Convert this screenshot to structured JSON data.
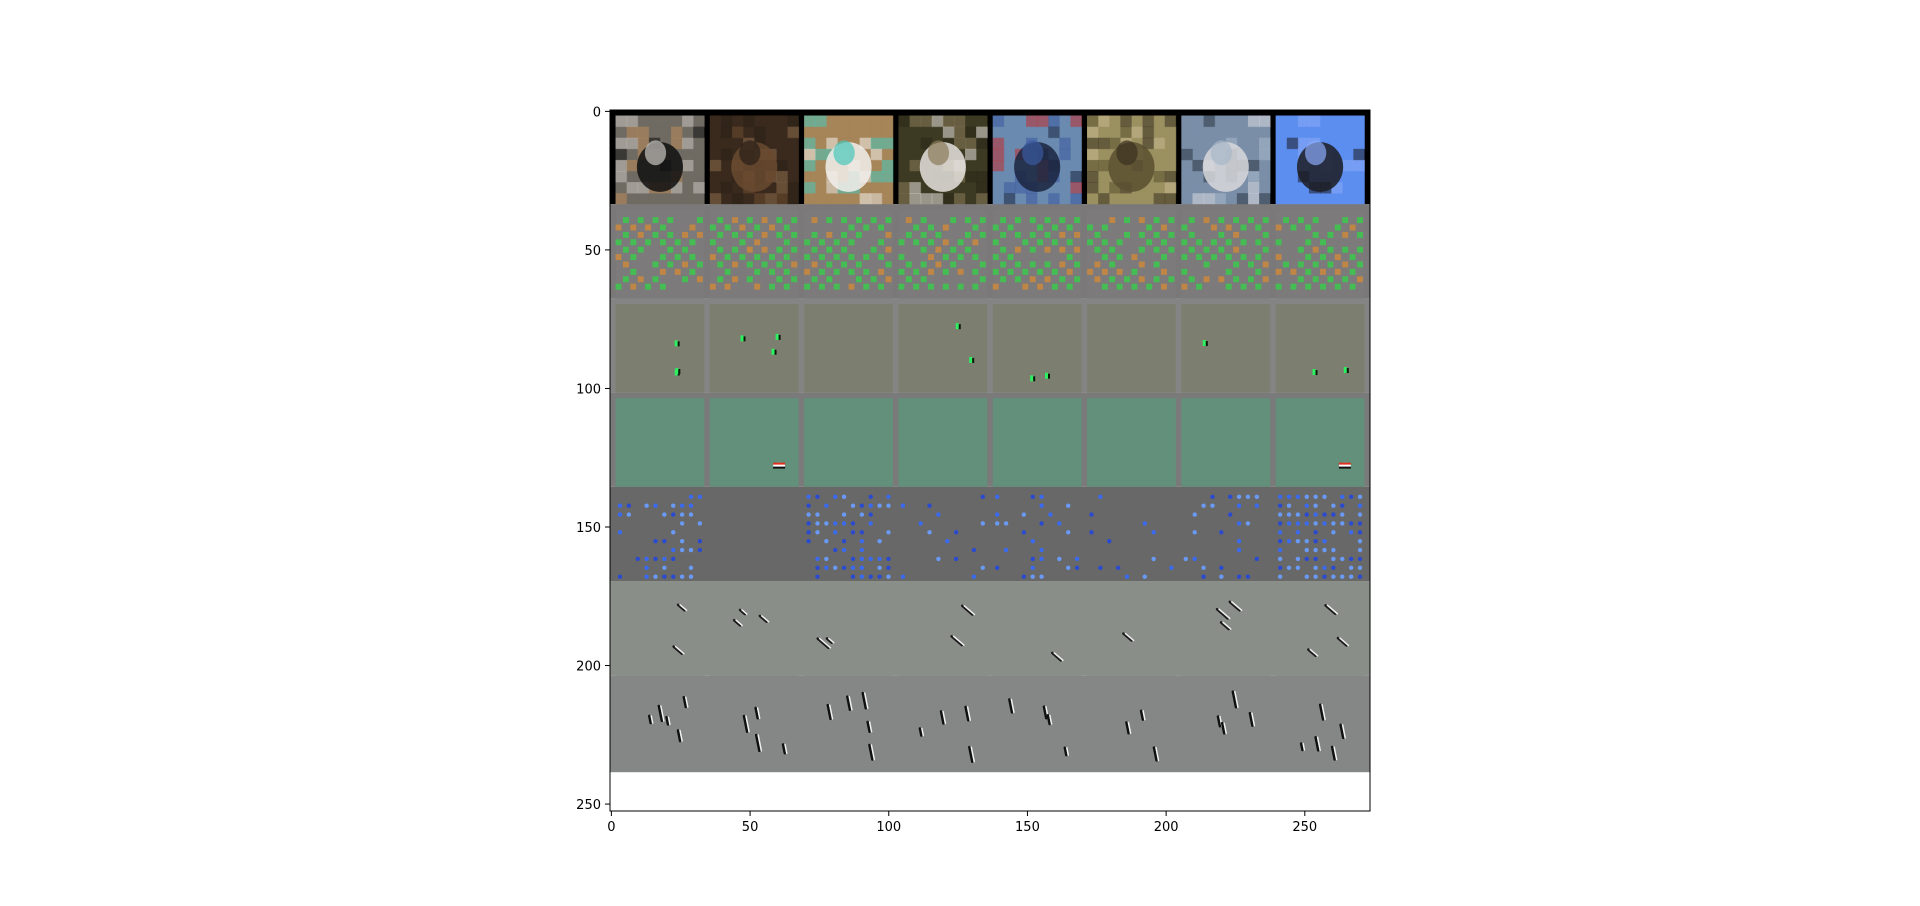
{
  "chart_data": {
    "type": "heatmap",
    "title": "",
    "xlabel": "",
    "ylabel": "",
    "xlim": [
      -0.5,
      273.5
    ],
    "ylim": [
      252.5,
      -0.5
    ],
    "xticks": [
      0,
      50,
      100,
      150,
      200,
      250
    ],
    "yticks": [
      0,
      50,
      100,
      150,
      200,
      250
    ],
    "grid": false,
    "legend": "none",
    "grid_layout": {
      "columns": 8,
      "rows": 7,
      "cell_size": 32,
      "padding": 2
    },
    "rows": [
      {
        "kind": "input-images",
        "background": "#000000",
        "tiles": [
          {
            "subject": "cat-in-box",
            "colors": [
              "#6f6a62",
              "#101010",
              "#b98a5a",
              "#c8c5bf"
            ]
          },
          {
            "subject": "deer",
            "colors": [
              "#3a2a1e",
              "#6a4a30",
              "#8a6a4a",
              "#2a2018"
            ]
          },
          {
            "subject": "white-dog",
            "colors": [
              "#a6855a",
              "#f2f0ec",
              "#e6e2dc",
              "#49c6b9"
            ]
          },
          {
            "subject": "bird-head",
            "colors": [
              "#3c3a22",
              "#e6e2de",
              "#2a2618",
              "#8a7a5a"
            ]
          },
          {
            "subject": "bird-blue",
            "colors": [
              "#6a8ab0",
              "#1a2440",
              "#c03030",
              "#3a5aa0"
            ]
          },
          {
            "subject": "bird-grass",
            "colors": [
              "#9a9060",
              "#5a5030",
              "#c8b890",
              "#3a3020"
            ]
          },
          {
            "subject": "boat",
            "colors": [
              "#7a8ea8",
              "#d8d8dc",
              "#2a3440",
              "#a8b8c8"
            ]
          },
          {
            "subject": "car",
            "colors": [
              "#5c8ef0",
              "#1c1c22",
              "#5c8ef0",
              "#8aaaf8"
            ]
          }
        ]
      },
      {
        "kind": "feature-map",
        "background": "#7a7878",
        "tile_bg": "#7c7a7a",
        "pattern": "dense-green-checker",
        "mark_colors": [
          "#36d04a",
          "#d08a3a",
          "#ffffff"
        ]
      },
      {
        "kind": "feature-map",
        "background": "#848484",
        "tile_bg": "#7c7f70",
        "pattern": "sparse-green-blobs",
        "mark_colors": [
          "#2cf060",
          "#ffffff",
          "#0a1a0a"
        ]
      },
      {
        "kind": "feature-map",
        "background": "#7a7a7a",
        "tile_bg": "#62907a",
        "pattern": "single-spot",
        "active_tiles": [
          1,
          7
        ],
        "mark_colors": [
          "#e03020",
          "#ffffff",
          "#101010"
        ]
      },
      {
        "kind": "feature-map",
        "background": "#686868",
        "tile_bg": "#686868",
        "pattern": "blue-dots",
        "mark_colors": [
          "#3a6af0",
          "#2a4ad0",
          "#6a9af8"
        ]
      },
      {
        "kind": "feature-map",
        "background": "#8a8e88",
        "tile_bg": "#8a8e88",
        "pattern": "diagonal-strokes",
        "mark_colors": [
          "#1a1a1a",
          "#f0f0f0",
          "#d06a8a"
        ]
      },
      {
        "kind": "feature-map",
        "background": "#858786",
        "tile_bg": "#858786",
        "pattern": "vertical-strokes",
        "mark_colors": [
          "#101010",
          "#f0f0f0",
          "#40c0d0"
        ]
      }
    ]
  }
}
